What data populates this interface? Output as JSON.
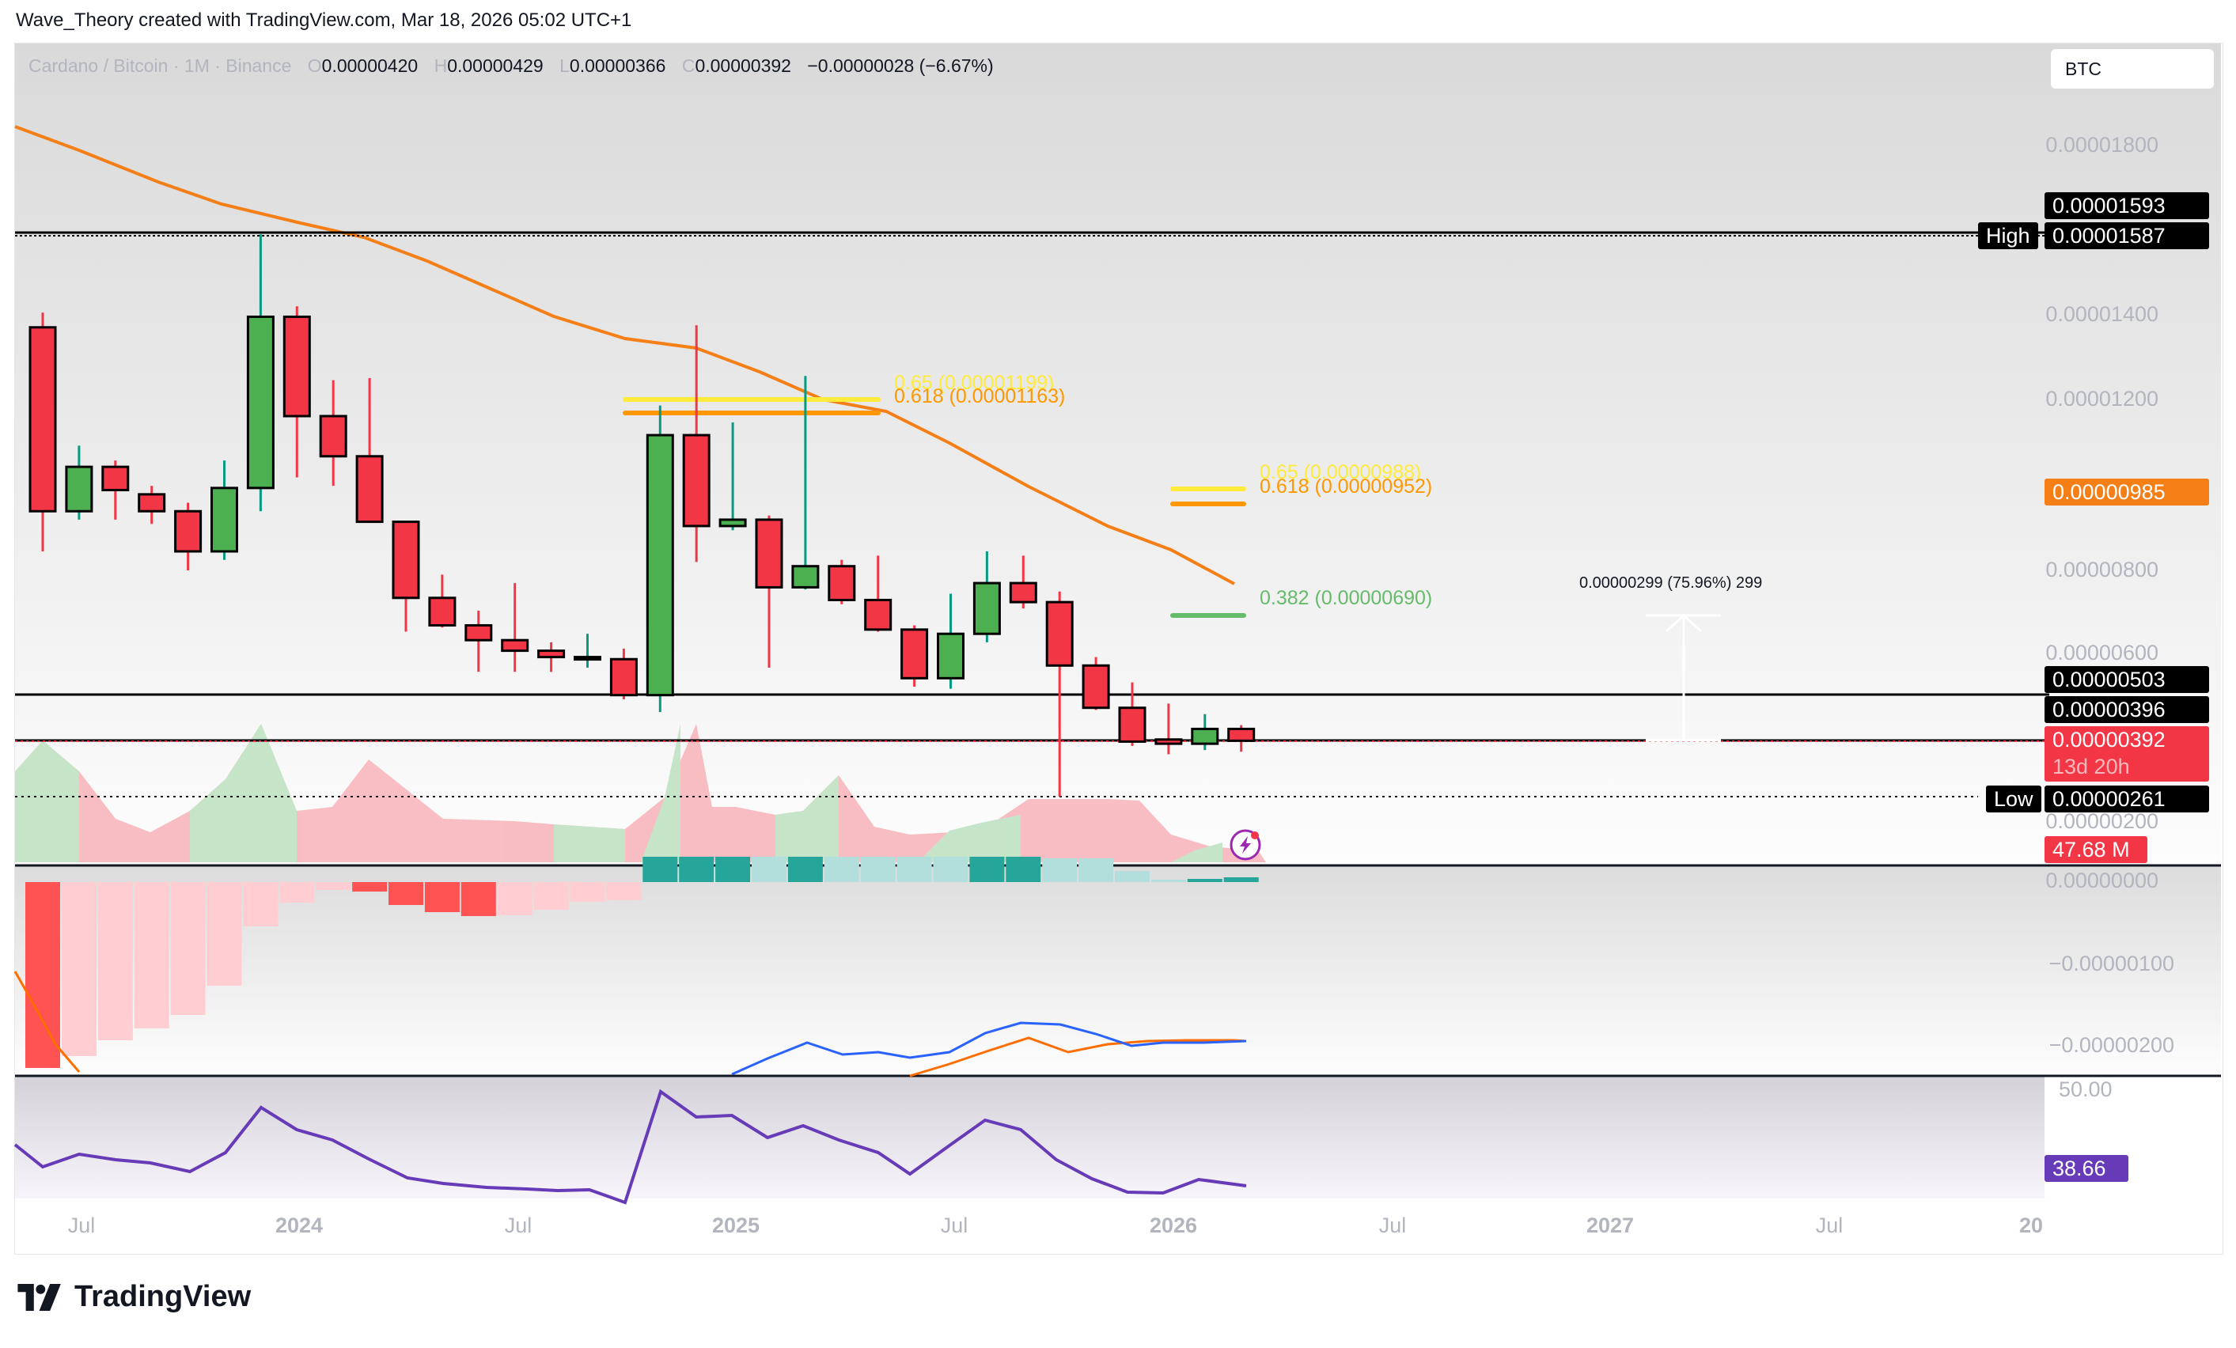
{
  "credit": "Wave_Theory created with TradingView.com, Mar 18, 2026 05:02 UTC+1",
  "legend": {
    "symbol": "Cardano / Bitcoin · 1M · Binance",
    "o_label": "O",
    "o": "0.00000420",
    "h_label": "H",
    "h": "0.00000429",
    "l_label": "L",
    "l": "0.00000366",
    "c_label": "C",
    "c": "0.00000392",
    "change": "−0.00000028 (−6.67%)"
  },
  "currency_button": "BTC",
  "price_axis": {
    "ticks": [
      "0.00001800",
      "0.00001400",
      "0.00001200",
      "0.00000800",
      "0.00000600",
      "0.00000200"
    ],
    "tags": {
      "level_1593": "0.00001593",
      "high_label": "High",
      "high": "0.00001587",
      "ema": "0.00000985",
      "level_503": "0.00000503",
      "level_396": "0.00000396",
      "last_price": "0.00000392",
      "countdown": "13d 20h",
      "low_label": "Low",
      "low": "0.00000261",
      "volume": "47.68 M"
    }
  },
  "macd_axis": {
    "ticks": [
      "0.00000000",
      "−0.00000100",
      "−0.00000200"
    ]
  },
  "rsi_axis": {
    "ticks": [
      "50.00"
    ],
    "value": "38.66"
  },
  "x_axis": {
    "labels": [
      {
        "text": "Jul",
        "year": false
      },
      {
        "text": "2024",
        "year": true
      },
      {
        "text": "Jul",
        "year": false
      },
      {
        "text": "2025",
        "year": true
      },
      {
        "text": "Jul",
        "year": false
      },
      {
        "text": "2026",
        "year": true
      },
      {
        "text": "Jul",
        "year": false
      },
      {
        "text": "2027",
        "year": true
      },
      {
        "text": "Jul",
        "year": false
      },
      {
        "text": "20",
        "year": true
      }
    ]
  },
  "fib_labels": {
    "upper_065": "0.65 (0.00001199)",
    "upper_0618": "0.618 (0.00001163)",
    "lower_065": "0.65 (0.00000988)",
    "lower_0618": "0.618 (0.00000952)",
    "lower_0382": "0.382 (0.00000690)"
  },
  "measure": "0.00000299 (75.96%) 299",
  "logo_text": "TradingView",
  "colors": {
    "up": "#4caf50",
    "down": "#f23645",
    "ema": "#f57f17",
    "fib_065": "#ffeb3b",
    "fib_0618": "#ff9800",
    "fib_0382": "#66bb6a",
    "rsi": "#673ab7",
    "macd": "#2962ff",
    "signal": "#ff6d00"
  },
  "chart_data": {
    "type": "candlestick",
    "title": "Cardano / Bitcoin · 1M · Binance",
    "ylabel": "Price (BTC)",
    "ylim": [
      2e-06,
      1.9e-05
    ],
    "x_labels": [
      "Jul",
      "2024",
      "Jul",
      "2025",
      "Jul",
      "2026",
      "Jul",
      "2027",
      "Jul"
    ],
    "candles": [
      {
        "o": 1.37e-05,
        "h": 1.405e-05,
        "l": 8.4e-06,
        "c": 9.35e-06
      },
      {
        "o": 9.35e-06,
        "h": 1.09e-05,
        "l": 9.15e-06,
        "c": 1.04e-05
      },
      {
        "o": 1.04e-05,
        "h": 1.055e-05,
        "l": 9.15e-06,
        "c": 9.85e-06
      },
      {
        "o": 9.75e-06,
        "h": 9.95e-06,
        "l": 9.05e-06,
        "c": 9.35e-06
      },
      {
        "o": 9.35e-06,
        "h": 9.55e-06,
        "l": 7.95e-06,
        "c": 8.4e-06
      },
      {
        "o": 8.4e-06,
        "h": 1.055e-05,
        "l": 8.2e-06,
        "c": 9.9e-06
      },
      {
        "o": 9.9e-06,
        "h": 1.59e-05,
        "l": 9.35e-06,
        "c": 1.395e-05
      },
      {
        "o": 1.395e-05,
        "h": 1.42e-05,
        "l": 1.015e-05,
        "c": 1.16e-05
      },
      {
        "o": 1.16e-05,
        "h": 1.245e-05,
        "l": 9.95e-06,
        "c": 1.065e-05
      },
      {
        "o": 1.065e-05,
        "h": 1.25e-05,
        "l": 9.1e-06,
        "c": 9.1e-06
      },
      {
        "o": 9.1e-06,
        "h": 9.1e-06,
        "l": 6.5e-06,
        "c": 7.3e-06
      },
      {
        "o": 7.3e-06,
        "h": 7.85e-06,
        "l": 6.6e-06,
        "c": 6.65e-06
      },
      {
        "o": 6.65e-06,
        "h": 7e-06,
        "l": 5.55e-06,
        "c": 6.3e-06
      },
      {
        "o": 6.3e-06,
        "h": 7.65e-06,
        "l": 5.55e-06,
        "c": 6.05e-06
      },
      {
        "o": 6.05e-06,
        "h": 6.25e-06,
        "l": 5.55e-06,
        "c": 5.9e-06
      },
      {
        "o": 5.9e-06,
        "h": 6.45e-06,
        "l": 5.65e-06,
        "c": 5.9e-06
      },
      {
        "o": 5.85e-06,
        "h": 6.1e-06,
        "l": 4.9e-06,
        "c": 5e-06
      },
      {
        "o": 5e-06,
        "h": 1.185e-05,
        "l": 4.6e-06,
        "c": 1.115e-05
      },
      {
        "o": 1.115e-05,
        "h": 1.375e-05,
        "l": 8.15e-06,
        "c": 9e-06
      },
      {
        "o": 9e-06,
        "h": 1.145e-05,
        "l": 8.9e-06,
        "c": 9.15e-06
      },
      {
        "o": 9.15e-06,
        "h": 9.25e-06,
        "l": 5.65e-06,
        "c": 7.55e-06
      },
      {
        "o": 7.55e-06,
        "h": 1.255e-05,
        "l": 7.5e-06,
        "c": 8.05e-06
      },
      {
        "o": 8.05e-06,
        "h": 8.2e-06,
        "l": 7.15e-06,
        "c": 7.25e-06
      },
      {
        "o": 7.25e-06,
        "h": 8.3e-06,
        "l": 6.5e-06,
        "c": 6.55e-06
      },
      {
        "o": 6.55e-06,
        "h": 6.65e-06,
        "l": 5.2e-06,
        "c": 5.4e-06
      },
      {
        "o": 5.4e-06,
        "h": 7.4e-06,
        "l": 5.15e-06,
        "c": 6.45e-06
      },
      {
        "o": 6.45e-06,
        "h": 8.4e-06,
        "l": 6.25e-06,
        "c": 7.65e-06
      },
      {
        "o": 7.65e-06,
        "h": 8.3e-06,
        "l": 7.05e-06,
        "c": 7.2e-06
      },
      {
        "o": 7.2e-06,
        "h": 7.45e-06,
        "l": 2.6e-06,
        "c": 5.7e-06
      },
      {
        "o": 5.7e-06,
        "h": 5.9e-06,
        "l": 4.65e-06,
        "c": 4.7e-06
      },
      {
        "o": 4.7e-06,
        "h": 5.3e-06,
        "l": 3.8e-06,
        "c": 3.9e-06
      },
      {
        "o": 3.95e-06,
        "h": 4.8e-06,
        "l": 3.6e-06,
        "c": 3.85e-06
      },
      {
        "o": 3.85e-06,
        "h": 4.55e-06,
        "l": 3.7e-06,
        "c": 4.2e-06
      },
      {
        "o": 4.2e-06,
        "h": 4.29e-06,
        "l": 3.66e-06,
        "c": 3.92e-06
      }
    ],
    "horizontal_levels": [
      {
        "label": "High",
        "value": 1.587e-05
      },
      {
        "value": 5.03e-06
      },
      {
        "value": 3.96e-06
      },
      {
        "label": "Low",
        "value": 2.61e-06
      }
    ],
    "fibonacci": [
      {
        "ratio": 0.65,
        "value": 1.199e-05
      },
      {
        "ratio": 0.618,
        "value": 1.163e-05
      },
      {
        "ratio": 0.65,
        "value": 9.88e-06
      },
      {
        "ratio": 0.618,
        "value": 9.52e-06
      },
      {
        "ratio": 0.382,
        "value": 6.9e-06
      }
    ],
    "ema_last": 9.85e-06,
    "last_price": 3.92e-06,
    "volume_last": "47.68M",
    "rsi_last": 38.66,
    "measure": {
      "delta": 2.99e-06,
      "percent": 75.96,
      "bars": 299
    }
  }
}
